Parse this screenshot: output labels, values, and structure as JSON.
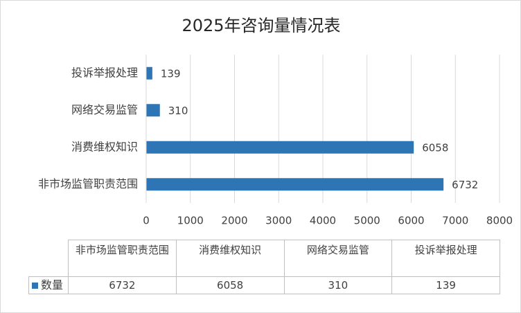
{
  "chart_data": {
    "type": "hbar",
    "title": "2025年咨询量情况表",
    "categories": [
      "非市场监管职责范围",
      "消费维权知识",
      "网络交易监管",
      "投诉举报处理"
    ],
    "series": [
      {
        "name": "数量",
        "color": "#2e75b6",
        "values": [
          6732,
          6058,
          310,
          139
        ]
      }
    ],
    "xlim": [
      0,
      8000
    ],
    "xticks": [
      0,
      1000,
      2000,
      3000,
      4000,
      5000,
      6000,
      7000,
      8000
    ],
    "grid": true,
    "data_table": true
  }
}
